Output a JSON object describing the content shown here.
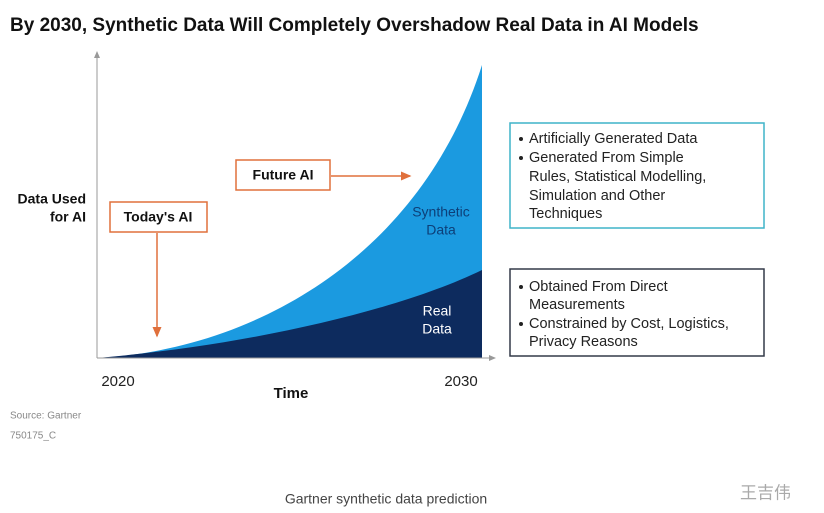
{
  "header": {
    "title": "By 2030,  Synthetic Data Will Completely Overshadow Real Data in AI Models"
  },
  "axes": {
    "y_label": [
      "Data Used",
      "for AI"
    ],
    "x_start": "2020",
    "x_end": "2030",
    "x_label": "Time"
  },
  "callouts": {
    "today": "Today's AI",
    "future": "Future AI"
  },
  "areas": {
    "synthetic": [
      "Synthetic",
      "Data"
    ],
    "real": [
      "Real",
      "Data"
    ]
  },
  "synthetic_box": {
    "bullets": [
      [
        "Artificially Generated Data"
      ],
      [
        "Generated From Simple",
        "Rules, Statistical Modelling,",
        "Simulation and Other",
        "Techniques"
      ]
    ]
  },
  "real_box": {
    "bullets": [
      [
        "Obtained From Direct",
        "Measurements"
      ],
      [
        "Constrained by Cost, Logistics,",
        "Privacy Reasons"
      ]
    ]
  },
  "footer": {
    "source": "Source: Gartner",
    "code": "750175_C"
  },
  "caption": "Gartner synthetic data prediction",
  "watermark": "王吉伟"
}
